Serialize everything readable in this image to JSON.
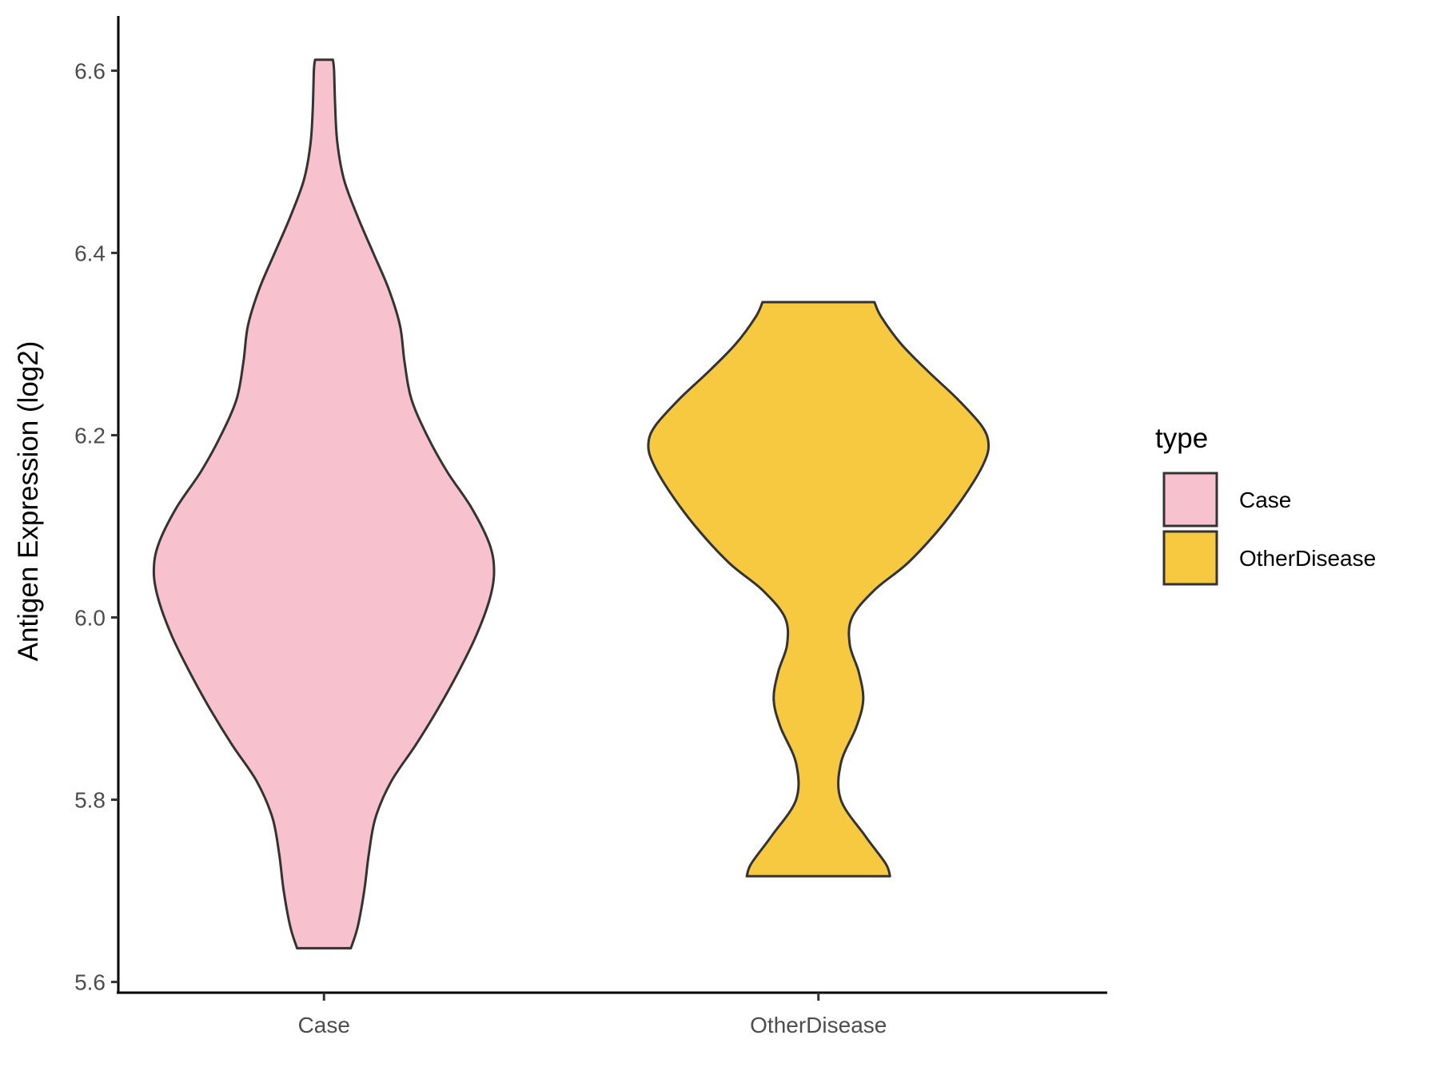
{
  "chart_data": {
    "type": "violin",
    "title": "",
    "xlabel": "",
    "ylabel": "Antigen Expression (log2)",
    "ylim": [
      5.59,
      6.66
    ],
    "yticks": [
      5.6,
      5.8,
      6.0,
      6.2,
      6.4,
      6.6
    ],
    "ytick_labels": [
      "5.6",
      "5.8",
      "6.0",
      "6.2",
      "6.4",
      "6.6"
    ],
    "categories": [
      "Case",
      "OtherDisease"
    ],
    "grid": false,
    "legend": {
      "title": "type",
      "position": "right",
      "entries": [
        {
          "label": "Case",
          "color": "#F7C1CE"
        },
        {
          "label": "OtherDisease",
          "color": "#F6C940"
        }
      ]
    },
    "series": [
      {
        "name": "Case",
        "color": "#F7C1CE",
        "ymin": 5.637,
        "ymax": 6.612,
        "density_profile": [
          [
            5.637,
            0.12
          ],
          [
            5.66,
            0.15
          ],
          [
            5.7,
            0.18
          ],
          [
            5.74,
            0.2
          ],
          [
            5.78,
            0.23
          ],
          [
            5.82,
            0.3
          ],
          [
            5.86,
            0.41
          ],
          [
            5.9,
            0.51
          ],
          [
            5.94,
            0.6
          ],
          [
            5.98,
            0.68
          ],
          [
            6.02,
            0.74
          ],
          [
            6.05,
            0.76
          ],
          [
            6.08,
            0.74
          ],
          [
            6.12,
            0.66
          ],
          [
            6.16,
            0.55
          ],
          [
            6.2,
            0.46
          ],
          [
            6.24,
            0.39
          ],
          [
            6.28,
            0.36
          ],
          [
            6.32,
            0.34
          ],
          [
            6.36,
            0.29
          ],
          [
            6.4,
            0.22
          ],
          [
            6.44,
            0.15
          ],
          [
            6.48,
            0.09
          ],
          [
            6.52,
            0.06
          ],
          [
            6.56,
            0.05
          ],
          [
            6.6,
            0.045
          ],
          [
            6.612,
            0.04
          ]
        ]
      },
      {
        "name": "OtherDisease",
        "color": "#F6C940",
        "ymin": 5.716,
        "ymax": 6.346,
        "density_profile": [
          [
            5.716,
            0.32
          ],
          [
            5.73,
            0.3
          ],
          [
            5.76,
            0.21
          ],
          [
            5.8,
            0.1
          ],
          [
            5.84,
            0.1
          ],
          [
            5.88,
            0.17
          ],
          [
            5.91,
            0.2
          ],
          [
            5.94,
            0.18
          ],
          [
            5.97,
            0.14
          ],
          [
            6.0,
            0.15
          ],
          [
            6.03,
            0.25
          ],
          [
            6.06,
            0.4
          ],
          [
            6.1,
            0.55
          ],
          [
            6.14,
            0.67
          ],
          [
            6.17,
            0.74
          ],
          [
            6.19,
            0.76
          ],
          [
            6.21,
            0.73
          ],
          [
            6.24,
            0.62
          ],
          [
            6.27,
            0.49
          ],
          [
            6.3,
            0.37
          ],
          [
            6.33,
            0.28
          ],
          [
            6.346,
            0.25
          ]
        ]
      }
    ]
  }
}
